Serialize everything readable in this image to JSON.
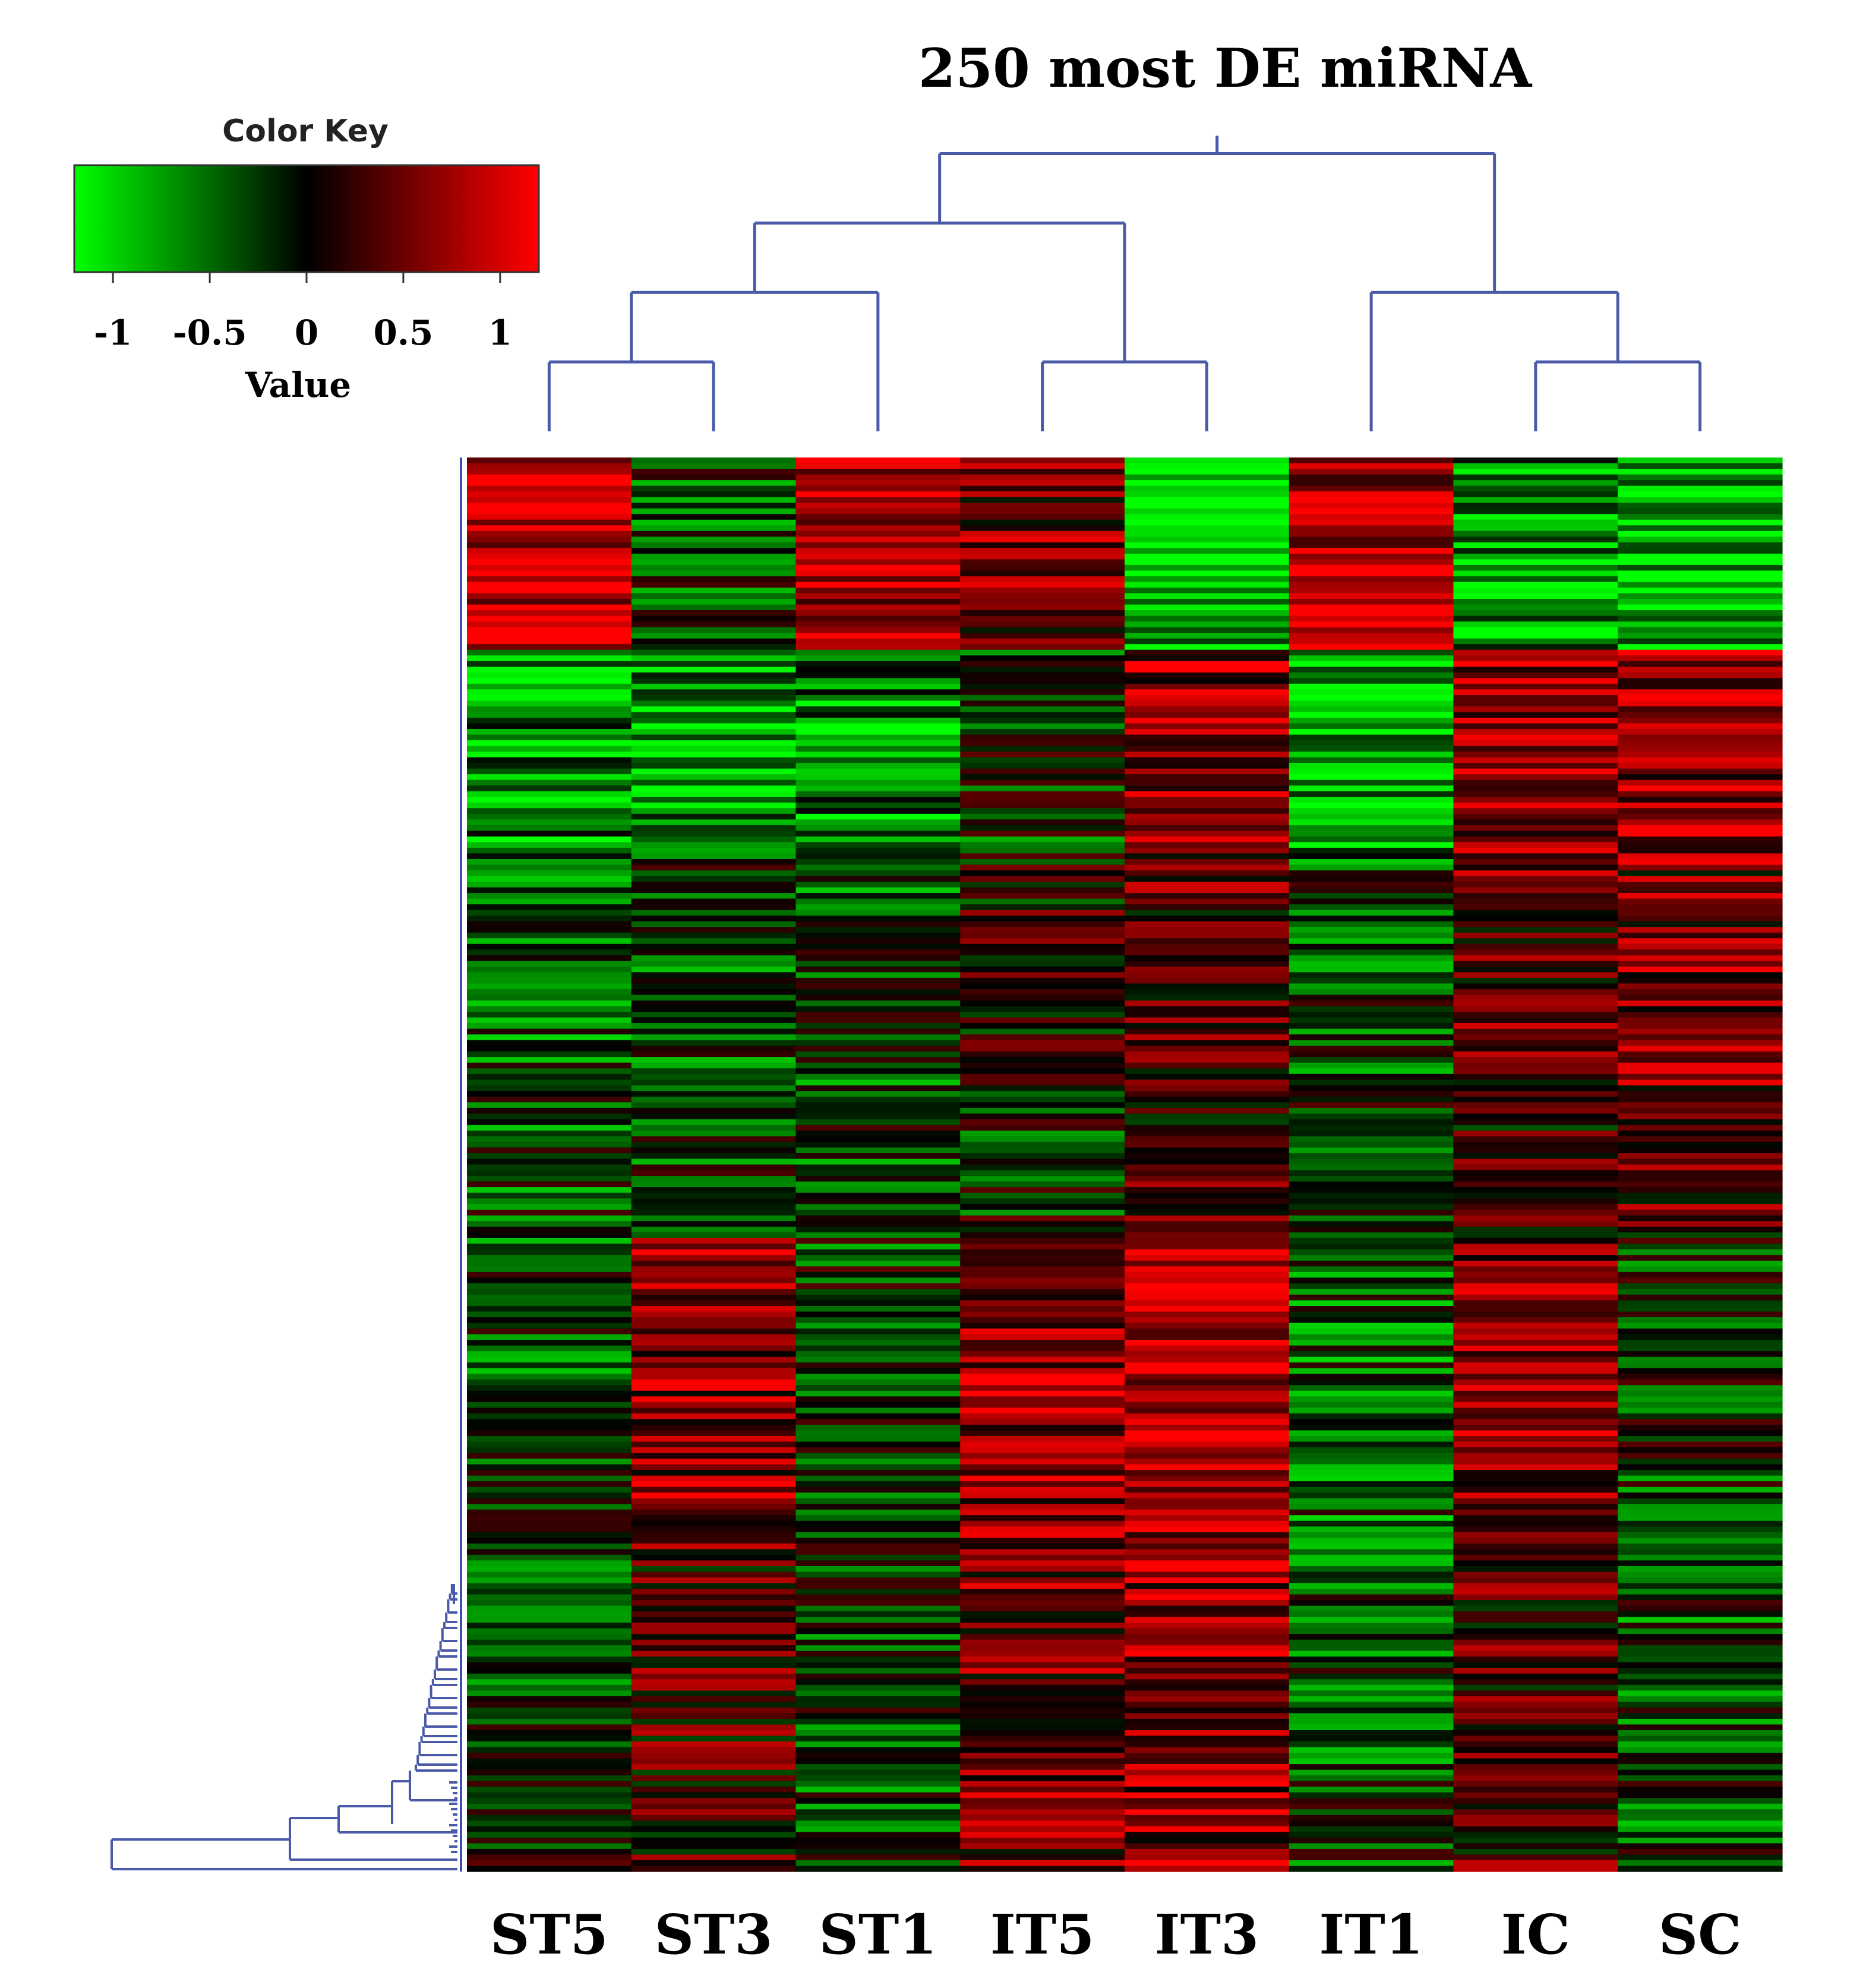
{
  "chart_data": {
    "type": "heatmap",
    "title": "250 most DE miRNA",
    "columns": [
      "ST5",
      "ST3",
      "ST1",
      "IT5",
      "IT3",
      "IT1",
      "IC",
      "SC"
    ],
    "rows_count": 250,
    "value_range": [
      -1.2,
      1.2
    ],
    "color_scale": {
      "low": "#00ff00",
      "mid": "#000000",
      "high": "#ff0000"
    },
    "color_key": {
      "title": "Color Key",
      "xlabel": "Value",
      "ticks": [
        {
          "value": -1,
          "label": "-1"
        },
        {
          "value": -0.5,
          "label": "-0.5"
        },
        {
          "value": 0,
          "label": "0"
        },
        {
          "value": 0.5,
          "label": "0.5"
        },
        {
          "value": 1,
          "label": "1"
        }
      ]
    },
    "column_dendrogram": "(((ST5,ST3),ST1),(IT5,IT3)),(IT1,(IC,SC))",
    "row_blocks": [
      {
        "rows": 34,
        "values": [
          1.0,
          -0.3,
          0.8,
          0.5,
          -0.9,
          0.9,
          -0.7,
          -0.9
        ]
      },
      {
        "rows": 36,
        "values": [
          -0.6,
          -0.7,
          -0.6,
          -0.2,
          0.6,
          -0.8,
          0.7,
          0.7
        ]
      },
      {
        "rows": 42,
        "values": [
          -0.4,
          -0.3,
          -0.3,
          0.1,
          0.4,
          -0.3,
          0.4,
          0.5
        ]
      },
      {
        "rows": 26,
        "values": [
          -0.3,
          -0.3,
          -0.3,
          -0.1,
          0.3,
          -0.2,
          0.2,
          0.3
        ]
      },
      {
        "rows": 52,
        "values": [
          -0.3,
          0.6,
          -0.2,
          0.7,
          0.9,
          -0.4,
          0.6,
          -0.2
        ]
      },
      {
        "rows": 60,
        "values": [
          -0.2,
          0.3,
          -0.3,
          0.5,
          0.6,
          -0.3,
          0.3,
          -0.3
        ]
      }
    ]
  },
  "colors": {
    "dendrogram": "#4a5aa8",
    "axis_line": "#3a4fb0",
    "background": "#ffffff"
  }
}
